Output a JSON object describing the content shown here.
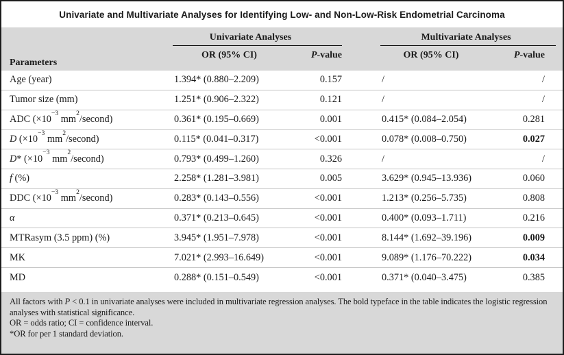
{
  "title": "Univariate and Multivariate Analyses for Identifying Low- and Non-Low-Risk Endometrial Carcinoma",
  "colors": {
    "band": "#d8d8d8",
    "border": "#1c1c1c",
    "rowline": "#c4c4c4",
    "ink": "#1b1b1b"
  },
  "table": {
    "group_headers": {
      "univariate": "Univariate Analyses",
      "multivariate": "Multivariate Analyses"
    },
    "col_headers": {
      "parameters": "Parameters",
      "or_univariate": "OR (95% CI)",
      "p_univariate_html": "<i>P</i>-value",
      "or_multivariate": "OR (95% CI)",
      "p_multivariate_html": "<i>P</i>-value"
    },
    "rows": [
      {
        "param_html": "Age (year)",
        "uni_or": "1.394* (0.880–2.209)",
        "uni_p": "0.157",
        "multi_or": "/",
        "multi_p": "/",
        "multi_p_bold": false
      },
      {
        "param_html": "Tumor size (mm)",
        "uni_or": "1.251* (0.906–2.322)",
        "uni_p": "0.121",
        "multi_or": "/",
        "multi_p": "/",
        "multi_p_bold": false
      },
      {
        "param_html": "ADC (×10<sup>−3</sup> mm<sup>2</sup>/second)",
        "uni_or": "0.361* (0.195–0.669)",
        "uni_p": "0.001",
        "multi_or": "0.415* (0.084–2.054)",
        "multi_p": "0.281",
        "multi_p_bold": false
      },
      {
        "param_html": "<i>D</i> (×10<sup>−3</sup> mm<sup>2</sup>/second)",
        "uni_or": "0.115* (0.041–0.317)",
        "uni_p": "<0.001",
        "multi_or": "0.078* (0.008–0.750)",
        "multi_p": "0.027",
        "multi_p_bold": true
      },
      {
        "param_html": "<i>D</i>* (×10<sup>−3</sup> mm<sup>2</sup>/second)",
        "uni_or": "0.793* (0.499–1.260)",
        "uni_p": "0.326",
        "multi_or": "/",
        "multi_p": "/",
        "multi_p_bold": false
      },
      {
        "param_html": "<i>f</i> (%)",
        "uni_or": "2.258* (1.281–3.981)",
        "uni_p": "0.005",
        "multi_or": "3.629* (0.945–13.936)",
        "multi_p": "0.060",
        "multi_p_bold": false
      },
      {
        "param_html": "DDC (×10<sup>−3</sup> mm<sup>2</sup>/second)",
        "uni_or": "0.283* (0.143–0.556)",
        "uni_p": "<0.001",
        "multi_or": "1.213* (0.256–5.735)",
        "multi_p": "0.808",
        "multi_p_bold": false
      },
      {
        "param_html": "<i>α</i>",
        "uni_or": "0.371* (0.213–0.645)",
        "uni_p": "<0.001",
        "multi_or": "0.400* (0.093–1.711)",
        "multi_p": "0.216",
        "multi_p_bold": false
      },
      {
        "param_html": "MTRasym (3.5 ppm) (%)",
        "uni_or": "3.945* (1.951–7.978)",
        "uni_p": "<0.001",
        "multi_or": "8.144* (1.692–39.196)",
        "multi_p": "0.009",
        "multi_p_bold": true
      },
      {
        "param_html": "MK",
        "uni_or": "7.021* (2.993–16.649)",
        "uni_p": "<0.001",
        "multi_or": "9.089* (1.176–70.222)",
        "multi_p": "0.034",
        "multi_p_bold": true
      },
      {
        "param_html": "MD",
        "uni_or": "0.288* (0.151–0.549)",
        "uni_p": "<0.001",
        "multi_or": "0.371* (0.040–3.475)",
        "multi_p": "0.385",
        "multi_p_bold": false
      }
    ]
  },
  "footnotes_html": [
    "All factors with <i>P</i> &lt; 0.1 in univariate analyses were included in multivariate regression analyses. The bold typeface in the table indicates the logistic regression analyses with statistical significance.",
    "OR = odds ratio; CI = confidence interval.",
    "*OR for per 1 standard deviation."
  ]
}
